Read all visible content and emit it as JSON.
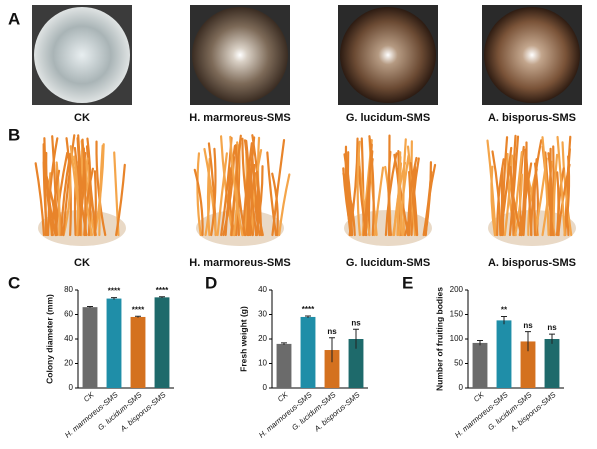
{
  "panels": [
    "A",
    "B",
    "C",
    "D",
    "E"
  ],
  "row_a_captions": [
    "CK",
    "H. marmoreus-SMS",
    "G. lucidum-SMS",
    "A. bisporus-SMS"
  ],
  "row_b_captions": [
    "CK",
    "H. marmoreus-SMS",
    "G. lucidum-SMS",
    "A. bisporus-SMS"
  ],
  "chart_data": [
    {
      "type": "bar",
      "y_label": "Colony diameter (mm)",
      "categories": [
        "CK",
        "H. marmoreus-SMS",
        "G. lucidum-SMS",
        "A. bisporus-SMS"
      ],
      "values": [
        66,
        73,
        58,
        74
      ],
      "errors": [
        0.5,
        0.8,
        0.6,
        0.5
      ],
      "significance": [
        null,
        "****",
        "****",
        "****"
      ],
      "colors": [
        "#6b6b6b",
        "#1f8ea8",
        "#d4711f",
        "#1e6a6b"
      ],
      "ylim": [
        0,
        80
      ],
      "yticks": [
        0,
        20,
        40,
        60,
        80
      ]
    },
    {
      "type": "bar",
      "y_label": "Fresh weight (g)",
      "categories": [
        "CK",
        "H. marmoreus-SMS",
        "G. lucidum-SMS",
        "A. bisporus-SMS"
      ],
      "values": [
        18,
        29,
        15.5,
        20
      ],
      "errors": [
        0.4,
        0.4,
        5,
        4
      ],
      "significance": [
        null,
        "****",
        "ns",
        "ns"
      ],
      "colors": [
        "#6b6b6b",
        "#1f8ea8",
        "#d4711f",
        "#1e6a6b"
      ],
      "ylim": [
        0,
        40
      ],
      "yticks": [
        0,
        10,
        20,
        30,
        40
      ]
    },
    {
      "type": "bar",
      "y_label": "Number of fruiting bodies",
      "categories": [
        "CK",
        "H. marmoreus-SMS",
        "G. lucidum-SMS",
        "A. bisporus-SMS"
      ],
      "values": [
        92,
        138,
        95,
        100
      ],
      "errors": [
        5,
        8,
        20,
        10
      ],
      "significance": [
        null,
        "**",
        "ns",
        "ns"
      ],
      "colors": [
        "#6b6b6b",
        "#1f8ea8",
        "#d4711f",
        "#1e6a6b"
      ],
      "ylim": [
        0,
        200
      ],
      "yticks": [
        0,
        50,
        100,
        150,
        200
      ]
    }
  ]
}
